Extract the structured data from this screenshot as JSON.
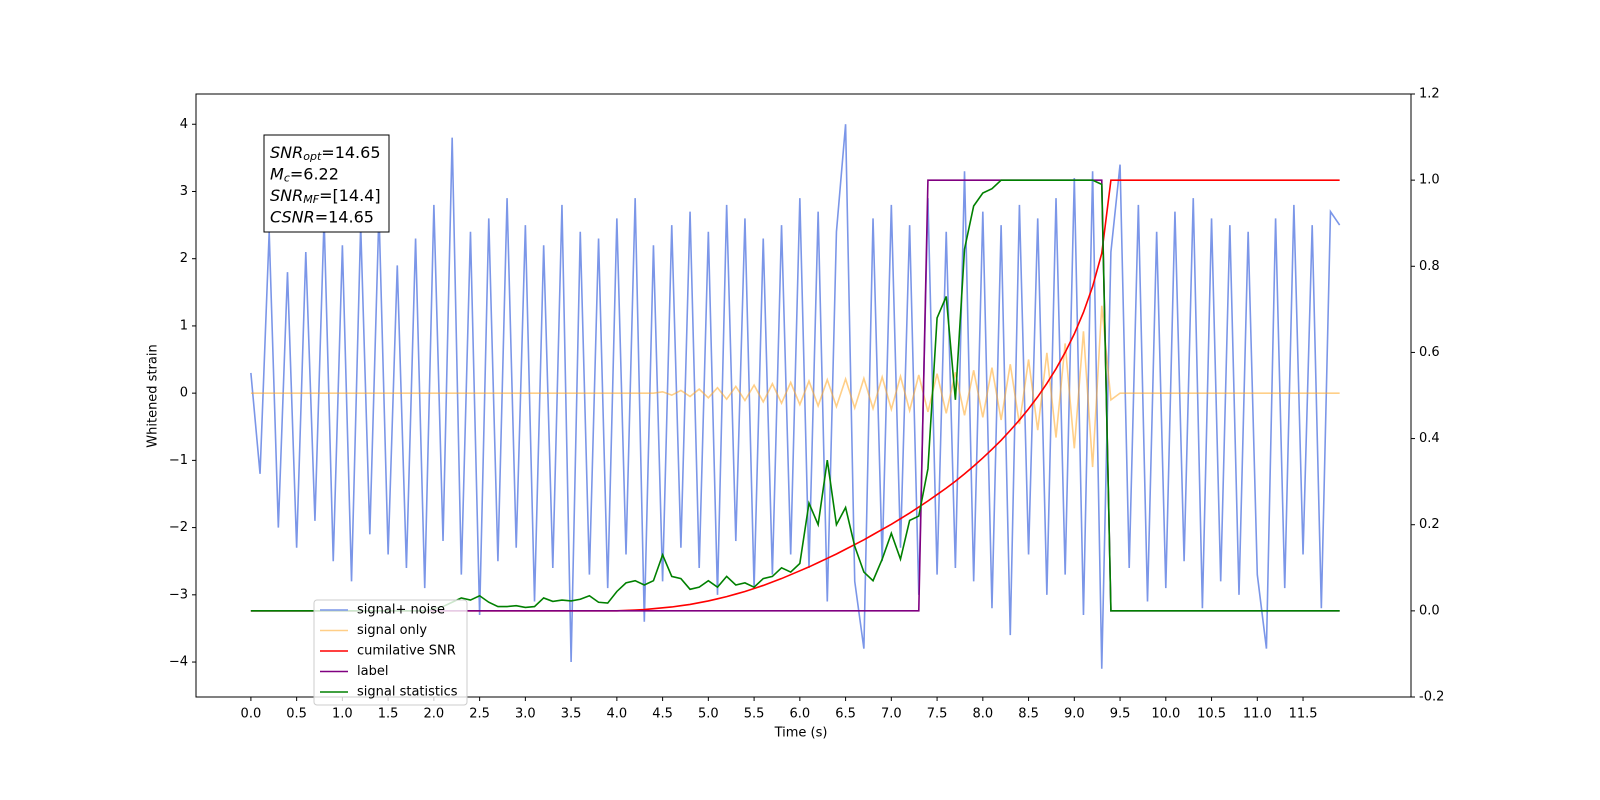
{
  "chart_data": {
    "type": "line",
    "xlabel": "Time (s)",
    "ylabel": "Whitened strain",
    "xlim": [
      -0.6,
      12.68
    ],
    "ylim": [
      -4.52,
      4.45
    ],
    "y2lim": [
      -0.2,
      1.2
    ],
    "xticks": [
      {
        "value": 0,
        "label": "0.0"
      },
      0.5,
      {
        "value": 1,
        "label": "1.0"
      },
      1.5,
      {
        "value": 2,
        "label": "2.0"
      },
      2.5,
      {
        "value": 3,
        "label": "3.0"
      },
      3.5,
      {
        "value": 4,
        "label": "4.0"
      },
      4.5,
      {
        "value": 5,
        "label": "5.0"
      },
      5.5,
      {
        "value": 6,
        "label": "6.0"
      },
      6.5,
      {
        "value": 7,
        "label": "7.0"
      },
      7.5,
      {
        "value": 8,
        "label": "8.0"
      },
      8.5,
      {
        "value": 9,
        "label": "9.0"
      },
      9.5,
      {
        "value": 10,
        "label": "10.0"
      },
      10.5,
      {
        "value": 11,
        "label": "11.0"
      },
      11.5
    ],
    "yticks": [
      {
        "value": -4,
        "label": "−4"
      },
      {
        "value": -3,
        "label": "−3"
      },
      {
        "value": -2,
        "label": "−2"
      },
      {
        "value": -1,
        "label": "−1"
      },
      0,
      1,
      2,
      3,
      4
    ],
    "y2ticks": [
      -0.2,
      {
        "value": 0,
        "label": "0.0"
      },
      0.2,
      0.4,
      0.6,
      0.8,
      {
        "value": 1,
        "label": "1.0"
      },
      1.2
    ],
    "annotations": [
      {
        "name": "SNR",
        "sub": "opt",
        "text": "=14.65"
      },
      {
        "name": "M",
        "sub": "c",
        "text": "=6.22"
      },
      {
        "name": "SNR",
        "sub": "MF",
        "text": "=[14.4]"
      },
      {
        "name": "CSNR",
        "text": "=14.65"
      }
    ],
    "x": [
      0,
      0.1,
      0.2,
      0.3,
      0.4,
      0.5,
      0.6,
      0.7,
      0.8,
      0.9,
      1,
      1.1,
      1.2,
      1.3,
      1.4,
      1.5,
      1.6,
      1.7,
      1.8,
      1.9,
      2,
      2.1,
      2.2,
      2.3,
      2.4,
      2.5,
      2.6,
      2.7,
      2.8,
      2.9,
      3,
      3.1,
      3.2,
      3.3,
      3.4,
      3.5,
      3.6,
      3.7,
      3.8,
      3.9,
      4,
      4.1,
      4.2,
      4.3,
      4.4,
      4.5,
      4.6,
      4.7,
      4.8,
      4.9,
      5,
      5.1,
      5.2,
      5.3,
      5.4,
      5.5,
      5.6,
      5.7,
      5.8,
      5.9,
      6,
      6.1,
      6.2,
      6.3,
      6.4,
      6.5,
      6.6,
      6.7,
      6.8,
      6.9,
      7,
      7.1,
      7.2,
      7.3,
      7.4,
      7.5,
      7.6,
      7.7,
      7.8,
      7.9,
      8,
      8.1,
      8.2,
      8.3,
      8.4,
      8.5,
      8.6,
      8.7,
      8.8,
      8.9,
      9,
      9.1,
      9.2,
      9.3,
      9.4,
      9.5,
      9.6,
      9.7,
      9.8,
      9.9,
      10,
      10.1,
      10.2,
      10.3,
      10.4,
      10.5,
      10.6,
      10.7,
      10.8,
      10.9,
      11,
      11.1,
      11.2,
      11.3,
      11.4,
      11.5,
      11.6,
      11.7,
      11.8,
      11.9
    ],
    "series": [
      {
        "name": "signal+ noise",
        "color": "#7b96e8",
        "values": [
          0.3,
          -1.2,
          2.4,
          -2.0,
          1.8,
          -2.3,
          2.1,
          -1.9,
          2.6,
          -2.5,
          2.2,
          -2.8,
          2.5,
          -2.1,
          2.7,
          -2.4,
          1.9,
          -2.6,
          2.3,
          -2.9,
          2.8,
          -2.2,
          3.8,
          -2.7,
          2.4,
          -3.3,
          2.6,
          -2.5,
          2.9,
          -2.3,
          2.5,
          -3.1,
          2.2,
          -2.6,
          2.8,
          -4.0,
          2.4,
          -2.7,
          2.3,
          -2.9,
          2.6,
          -2.4,
          2.9,
          -3.4,
          2.2,
          -2.8,
          2.5,
          -2.3,
          2.7,
          -2.6,
          2.4,
          -3.0,
          2.8,
          -2.2,
          2.6,
          -2.9,
          2.3,
          -2.7,
          2.5,
          -2.4,
          2.9,
          -2.6,
          2.7,
          -3.1,
          2.4,
          4.0,
          -2.8,
          -3.8,
          2.6,
          -2.5,
          2.8,
          -2.3,
          2.5,
          -3.0,
          2.9,
          -2.7,
          2.4,
          -2.6,
          3.3,
          -2.8,
          2.7,
          -3.2,
          2.5,
          -3.6,
          2.8,
          -2.4,
          2.6,
          -3.0,
          2.9,
          -2.7,
          3.2,
          -3.3,
          3.3,
          -4.1,
          2.1,
          3.4,
          -2.6,
          2.8,
          -3.1,
          2.4,
          -2.9,
          2.7,
          -2.5,
          2.9,
          -3.2,
          2.6,
          -2.8,
          2.5,
          -3.0,
          2.4,
          -2.7,
          -3.8,
          2.6,
          -2.9,
          2.8,
          -2.4,
          2.5,
          -3.2,
          2.7,
          2.5
        ]
      },
      {
        "name": "signal only",
        "color": "#ffa726",
        "values": [
          0,
          0,
          0,
          0,
          0,
          0,
          0,
          0,
          0,
          0,
          0,
          0,
          0,
          0,
          0,
          0,
          0,
          0,
          0,
          0,
          0,
          0,
          0,
          0,
          0,
          0,
          0,
          0,
          0,
          0,
          0,
          0,
          0,
          0,
          0,
          0,
          0,
          0,
          0,
          0,
          0,
          0,
          0,
          0,
          0,
          0.02,
          -0.03,
          0.04,
          -0.05,
          0.06,
          -0.07,
          0.08,
          -0.09,
          0.1,
          -0.11,
          0.12,
          -0.13,
          0.14,
          -0.15,
          0.16,
          -0.17,
          0.18,
          -0.19,
          0.2,
          -0.2,
          0.21,
          -0.22,
          0.22,
          -0.23,
          0.24,
          -0.24,
          0.25,
          -0.26,
          0.27,
          -0.28,
          0.29,
          -0.3,
          0.31,
          -0.33,
          0.34,
          -0.36,
          0.38,
          -0.4,
          0.43,
          -0.46,
          0.5,
          -0.55,
          0.6,
          -0.66,
          0.74,
          -0.82,
          0.92,
          -1.1,
          1.3,
          -0.1,
          0,
          0,
          0,
          0,
          0,
          0,
          0,
          0,
          0,
          0,
          0,
          0,
          0,
          0,
          0,
          0,
          0,
          0,
          0,
          0,
          0,
          0,
          0,
          0,
          0
        ]
      },
      {
        "name": "cumilative SNR",
        "color": "#ff0000",
        "axis": "y2",
        "values": [
          0,
          0,
          0,
          0,
          0,
          0,
          0,
          0,
          0,
          0,
          0,
          0,
          0,
          0,
          0,
          0,
          0,
          0,
          0,
          0,
          0,
          0,
          0,
          0,
          0,
          0,
          0,
          0,
          0,
          0,
          0,
          0,
          0,
          0,
          0,
          0,
          0,
          0,
          0,
          0,
          0,
          0.001,
          0.002,
          0.003,
          0.005,
          0.007,
          0.009,
          0.012,
          0.015,
          0.019,
          0.023,
          0.028,
          0.033,
          0.039,
          0.045,
          0.052,
          0.059,
          0.067,
          0.075,
          0.084,
          0.093,
          0.102,
          0.112,
          0.122,
          0.132,
          0.143,
          0.154,
          0.165,
          0.177,
          0.189,
          0.201,
          0.214,
          0.227,
          0.241,
          0.255,
          0.27,
          0.285,
          0.301,
          0.318,
          0.336,
          0.355,
          0.375,
          0.396,
          0.419,
          0.443,
          0.469,
          0.497,
          0.528,
          0.562,
          0.6,
          0.643,
          0.693,
          0.753,
          0.83,
          1,
          1,
          1,
          1,
          1,
          1,
          1,
          1,
          1,
          1,
          1,
          1,
          1,
          1,
          1,
          1,
          1,
          1,
          1,
          1,
          1,
          1,
          1,
          1,
          1,
          1
        ]
      },
      {
        "name": "label",
        "color": "#800080",
        "axis": "y2",
        "values": [
          0,
          0,
          0,
          0,
          0,
          0,
          0,
          0,
          0,
          0,
          0,
          0,
          0,
          0,
          0,
          0,
          0,
          0,
          0,
          0,
          0,
          0,
          0,
          0,
          0,
          0,
          0,
          0,
          0,
          0,
          0,
          0,
          0,
          0,
          0,
          0,
          0,
          0,
          0,
          0,
          0,
          0,
          0,
          0,
          0,
          0,
          0,
          0,
          0,
          0,
          0,
          0,
          0,
          0,
          0,
          0,
          0,
          0,
          0,
          0,
          0,
          0,
          0,
          0,
          0,
          0,
          0,
          0,
          0,
          0,
          0,
          0,
          0,
          0,
          1,
          1,
          1,
          1,
          1,
          1,
          1,
          1,
          1,
          1,
          1,
          1,
          1,
          1,
          1,
          1,
          1,
          1,
          1,
          1,
          0,
          0,
          0,
          0,
          0,
          0,
          0,
          0,
          0,
          0,
          0,
          0,
          0,
          0,
          0,
          0,
          0,
          0,
          0,
          0,
          0,
          0,
          0,
          0,
          0,
          0
        ]
      },
      {
        "name": "signal statistics",
        "color": "#008000",
        "axis": "y2",
        "values": [
          0,
          0,
          0,
          0,
          0,
          0,
          0,
          0,
          0,
          0,
          0,
          0,
          0,
          0,
          0,
          0,
          0,
          0,
          0,
          0,
          0.005,
          0.01,
          0.02,
          0.03,
          0.025,
          0.035,
          0.02,
          0.01,
          0.01,
          0.012,
          0.008,
          0.01,
          0.03,
          0.022,
          0.025,
          0.023,
          0.027,
          0.035,
          0.02,
          0.018,
          0.045,
          0.065,
          0.07,
          0.06,
          0.07,
          0.13,
          0.08,
          0.075,
          0.05,
          0.055,
          0.07,
          0.055,
          0.08,
          0.06,
          0.065,
          0.055,
          0.075,
          0.08,
          0.1,
          0.09,
          0.11,
          0.25,
          0.2,
          0.35,
          0.2,
          0.24,
          0.15,
          0.09,
          0.07,
          0.12,
          0.18,
          0.12,
          0.21,
          0.22,
          0.33,
          0.68,
          0.73,
          0.49,
          0.84,
          0.94,
          0.97,
          0.98,
          1,
          1,
          1,
          1,
          1,
          1,
          1,
          1,
          1,
          1,
          1,
          0.99,
          0,
          0,
          0,
          0,
          0,
          0,
          0,
          0,
          0,
          0,
          0,
          0,
          0,
          0,
          0,
          0,
          0,
          0,
          0,
          0,
          0,
          0,
          0,
          0,
          0,
          0
        ]
      }
    ]
  }
}
